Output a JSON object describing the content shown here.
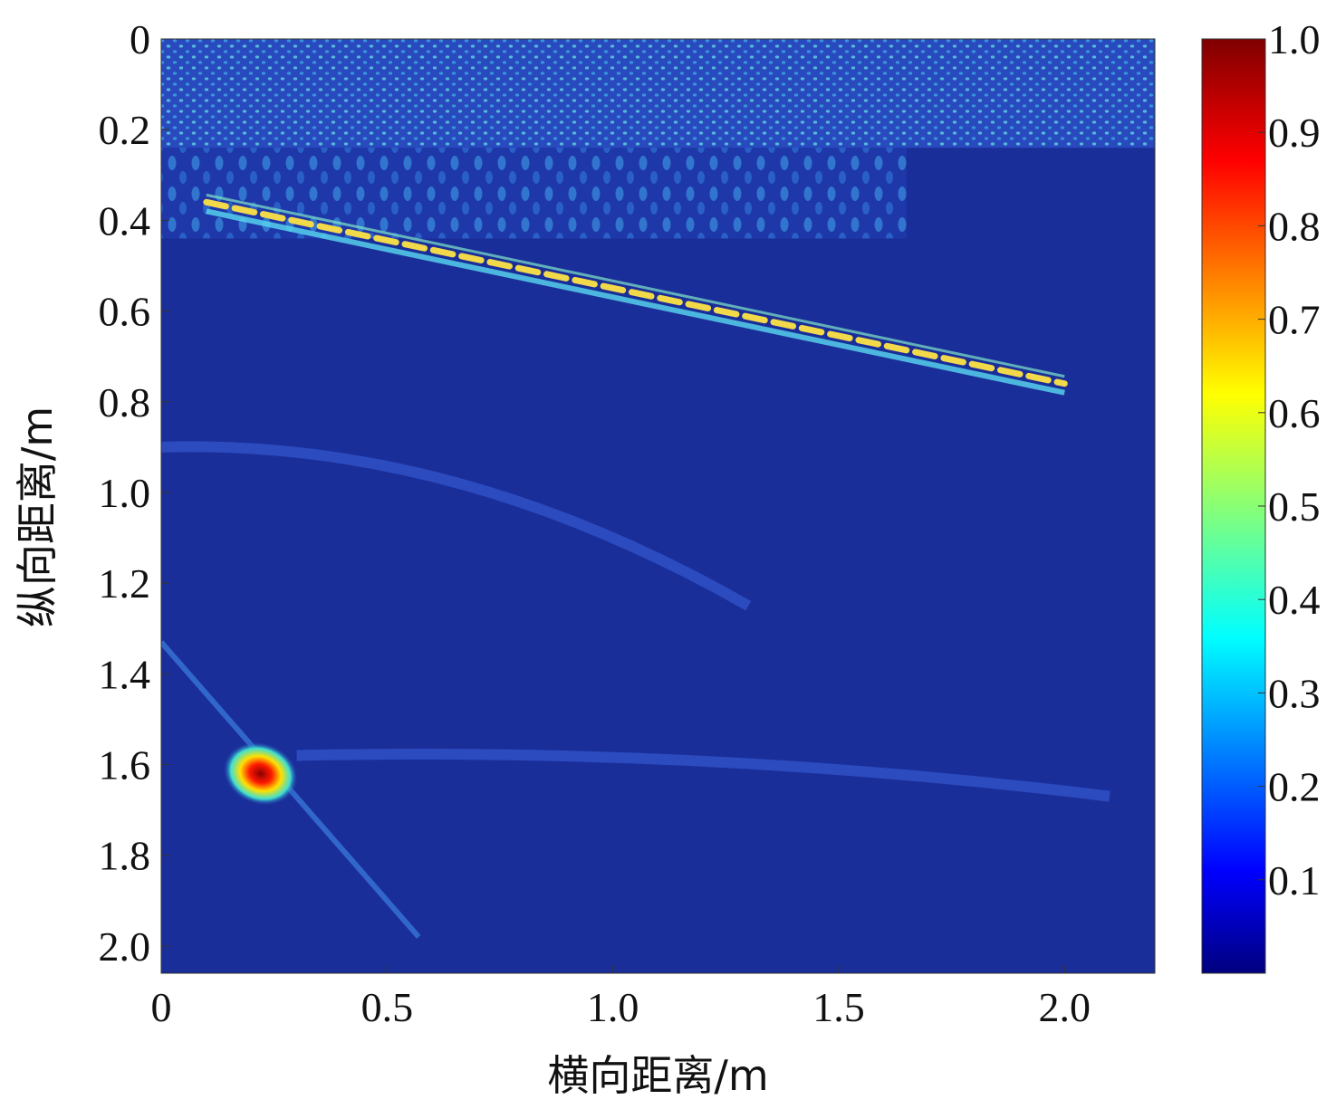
{
  "chart_data": {
    "type": "heatmap",
    "xlabel": "横向距离/m",
    "ylabel": "纵向距离/m",
    "xlim": [
      0,
      2.2
    ],
    "ylim": [
      0,
      2.06
    ],
    "y_reversed": true,
    "x_ticks": [
      {
        "value": 0,
        "label": "0"
      },
      {
        "value": 0.5,
        "label": "0.5"
      },
      {
        "value": 1.0,
        "label": "1.0"
      },
      {
        "value": 1.5,
        "label": "1.5"
      },
      {
        "value": 2.0,
        "label": "2.0"
      }
    ],
    "y_ticks": [
      {
        "value": 0,
        "label": "0"
      },
      {
        "value": 0.2,
        "label": "0.2"
      },
      {
        "value": 0.4,
        "label": "0.4"
      },
      {
        "value": 0.6,
        "label": "0.6"
      },
      {
        "value": 0.8,
        "label": "0.8"
      },
      {
        "value": 1.0,
        "label": "1.0"
      },
      {
        "value": 1.2,
        "label": "1.2"
      },
      {
        "value": 1.4,
        "label": "1.4"
      },
      {
        "value": 1.6,
        "label": "1.6"
      },
      {
        "value": 1.8,
        "label": "1.8"
      },
      {
        "value": 2.0,
        "label": "2.0"
      }
    ],
    "colorbar": {
      "colormap": "jet",
      "range": [
        0.0,
        1.0
      ],
      "ticks": [
        {
          "value": 0.1,
          "label": "0.1"
        },
        {
          "value": 0.2,
          "label": "0.2"
        },
        {
          "value": 0.3,
          "label": "0.3"
        },
        {
          "value": 0.4,
          "label": "0.4"
        },
        {
          "value": 0.5,
          "label": "0.5"
        },
        {
          "value": 0.6,
          "label": "0.6"
        },
        {
          "value": 0.7,
          "label": "0.7"
        },
        {
          "value": 0.8,
          "label": "0.8"
        },
        {
          "value": 0.9,
          "label": "0.9"
        },
        {
          "value": 1.0,
          "label": "1.0"
        }
      ]
    },
    "features": [
      {
        "kind": "noisy-band",
        "y_range": [
          0,
          0.24
        ],
        "value": 0.3
      },
      {
        "kind": "reflector",
        "from": [
          0.1,
          0.36
        ],
        "to": [
          2.0,
          0.76
        ],
        "value": 0.65
      },
      {
        "kind": "weak-reflector",
        "from": [
          0.0,
          0.9
        ],
        "to": [
          1.3,
          1.25
        ],
        "value": 0.15
      },
      {
        "kind": "weak-reflector",
        "from": [
          0.3,
          1.58
        ],
        "to": [
          2.1,
          1.67
        ],
        "value": 0.13
      },
      {
        "kind": "point-target",
        "x": 0.22,
        "y": 1.62,
        "value": 1.0
      }
    ]
  }
}
